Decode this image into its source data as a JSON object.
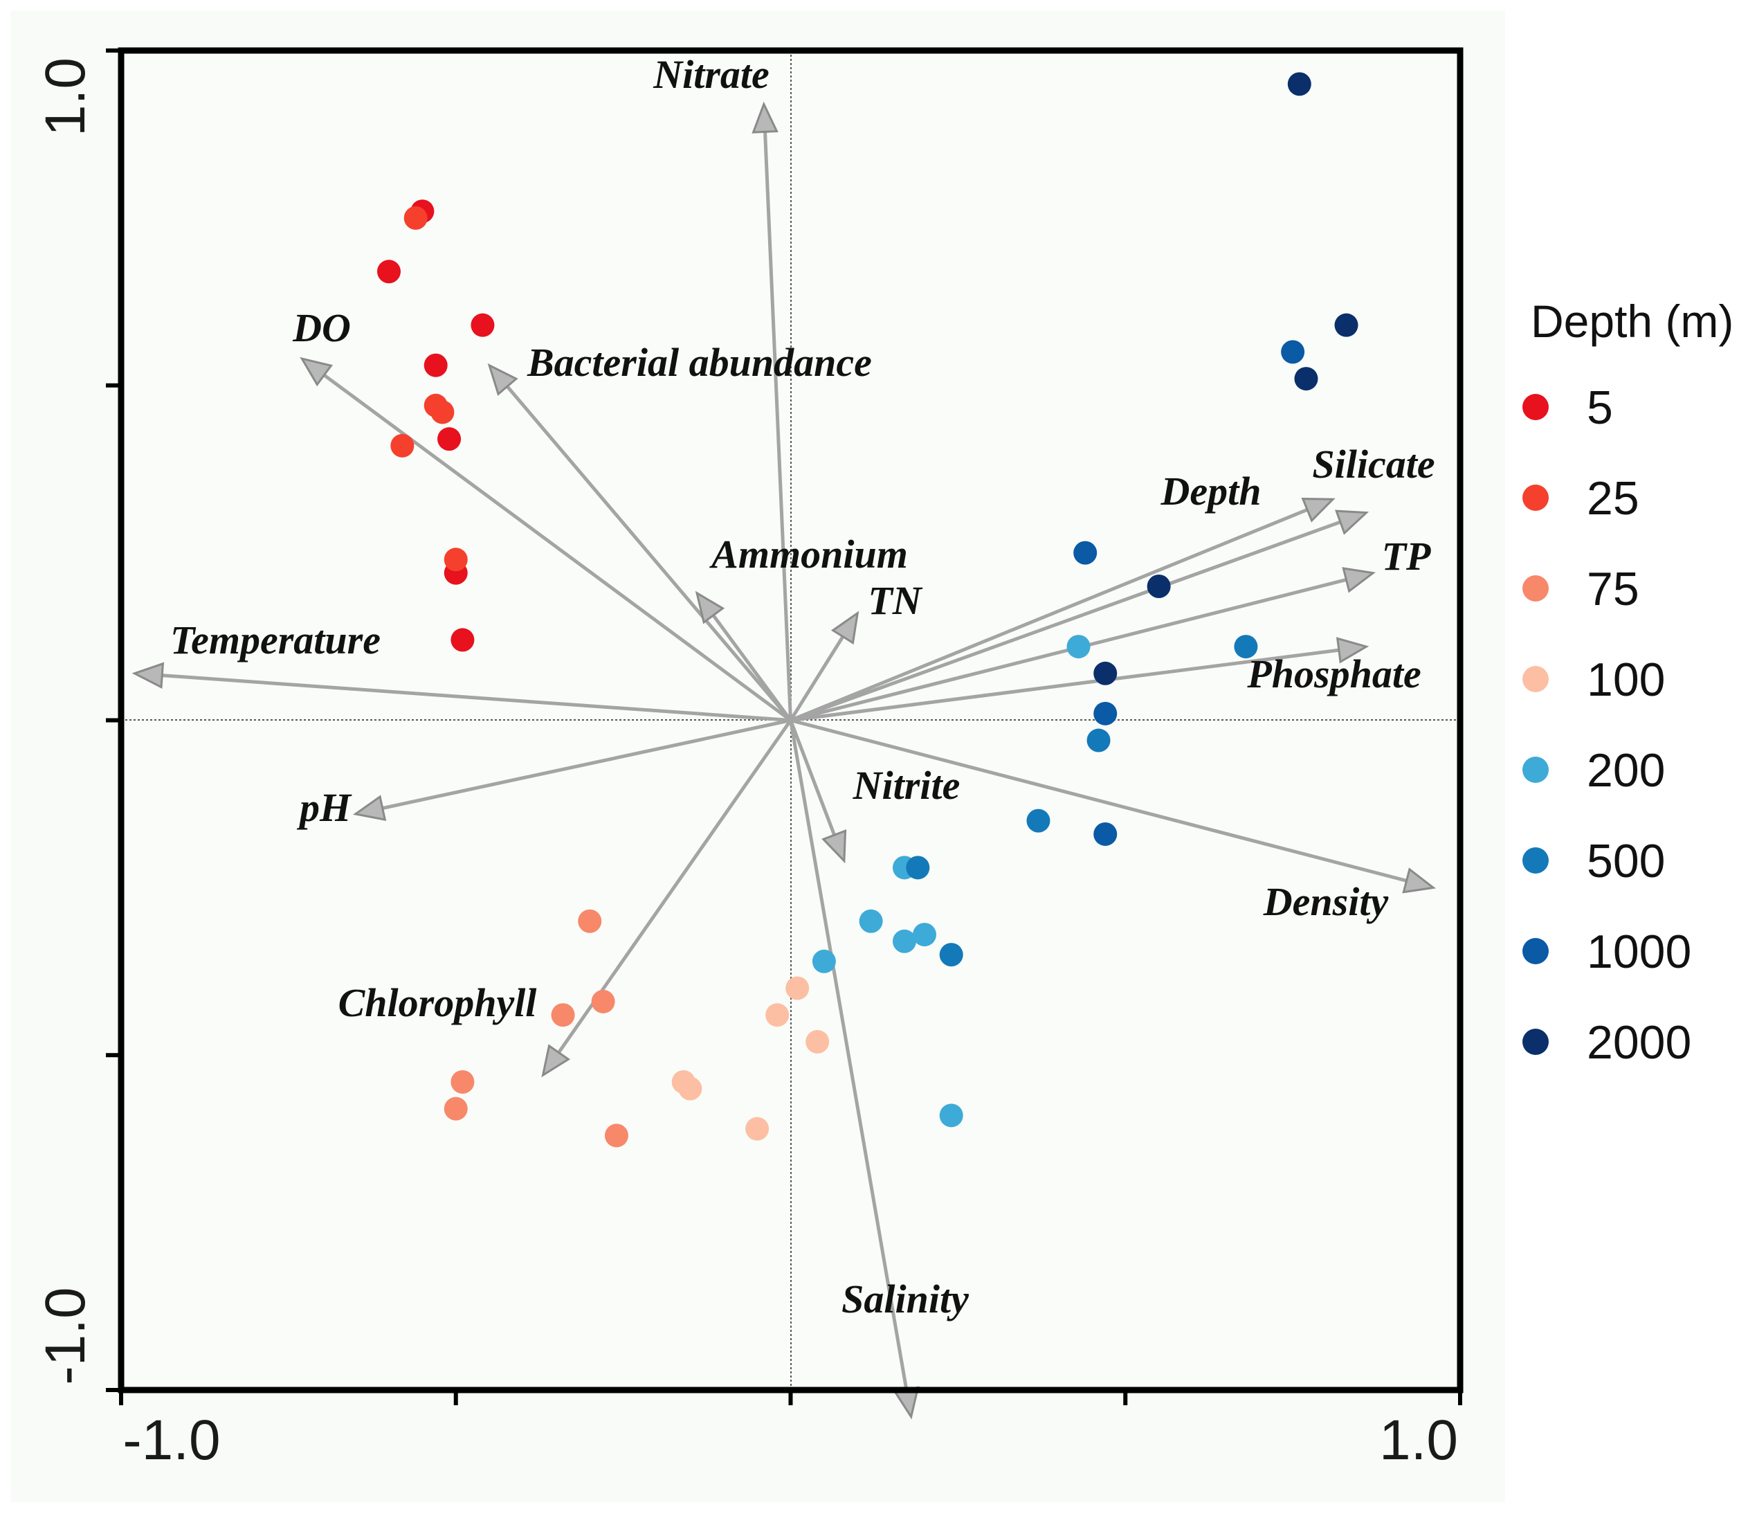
{
  "chart_data": {
    "type": "scatter",
    "subtype": "ordination-biplot",
    "title": "",
    "xlabel": "",
    "ylabel": "",
    "xlim": [
      -1.0,
      1.0
    ],
    "ylim": [
      -1.0,
      1.0
    ],
    "x_tick_labels": [
      "-1.0",
      "1.0"
    ],
    "y_tick_labels": [
      "1.0",
      "-1.0"
    ],
    "grid": false,
    "zero_lines": true,
    "vectors": [
      {
        "name": "Nitrate",
        "x": -0.04,
        "y": 0.92
      },
      {
        "name": "DO",
        "x": -0.73,
        "y": 0.54
      },
      {
        "name": "Bacterial abundance",
        "x": -0.45,
        "y": 0.53
      },
      {
        "name": "Ammonium",
        "x": -0.14,
        "y": 0.19
      },
      {
        "name": "TN",
        "x": 0.1,
        "y": 0.16
      },
      {
        "name": "Temperature",
        "x": -0.98,
        "y": 0.07
      },
      {
        "name": "pH",
        "x": -0.65,
        "y": -0.14
      },
      {
        "name": "Chlorophyll",
        "x": -0.37,
        "y": -0.53
      },
      {
        "name": "Nitrite",
        "x": 0.08,
        "y": -0.21
      },
      {
        "name": "Salinity",
        "x": 0.18,
        "y": -1.04
      },
      {
        "name": "Depth",
        "x": 0.81,
        "y": 0.33
      },
      {
        "name": "Silicate",
        "x": 0.86,
        "y": 0.31
      },
      {
        "name": "TP",
        "x": 0.87,
        "y": 0.22
      },
      {
        "name": "Phosphate",
        "x": 0.86,
        "y": 0.11
      },
      {
        "name": "Density",
        "x": 0.96,
        "y": -0.25
      }
    ],
    "series": [
      {
        "name": "5",
        "color": "#e8111e",
        "points": [
          [
            -0.55,
            0.76
          ],
          [
            -0.6,
            0.67
          ],
          [
            -0.53,
            0.53
          ],
          [
            -0.46,
            0.59
          ],
          [
            -0.51,
            0.42
          ],
          [
            -0.5,
            0.22
          ],
          [
            -0.49,
            0.12
          ]
        ]
      },
      {
        "name": "25",
        "color": "#f4402c",
        "points": [
          [
            -0.56,
            0.75
          ],
          [
            -0.53,
            0.47
          ],
          [
            -0.52,
            0.46
          ],
          [
            -0.58,
            0.41
          ],
          [
            -0.5,
            0.24
          ]
        ]
      },
      {
        "name": "75",
        "color": "#f7886a",
        "points": [
          [
            -0.3,
            -0.3
          ],
          [
            -0.34,
            -0.44
          ],
          [
            -0.28,
            -0.42
          ],
          [
            -0.49,
            -0.54
          ],
          [
            -0.5,
            -0.58
          ],
          [
            -0.26,
            -0.62
          ]
        ]
      },
      {
        "name": "100",
        "color": "#fcbfa3",
        "points": [
          [
            0.01,
            -0.4
          ],
          [
            -0.02,
            -0.44
          ],
          [
            0.04,
            -0.48
          ],
          [
            -0.16,
            -0.54
          ],
          [
            -0.15,
            -0.55
          ],
          [
            -0.05,
            -0.61
          ]
        ]
      },
      {
        "name": "200",
        "color": "#3eaad8",
        "points": [
          [
            0.17,
            -0.22
          ],
          [
            0.12,
            -0.3
          ],
          [
            0.17,
            -0.33
          ],
          [
            0.2,
            -0.32
          ],
          [
            0.05,
            -0.36
          ],
          [
            0.24,
            -0.59
          ],
          [
            0.43,
            0.11
          ]
        ]
      },
      {
        "name": "500",
        "color": "#1479b9",
        "points": [
          [
            0.68,
            0.11
          ],
          [
            0.46,
            -0.03
          ],
          [
            0.37,
            -0.15
          ],
          [
            0.19,
            -0.22
          ],
          [
            0.24,
            -0.35
          ]
        ]
      },
      {
        "name": "1000",
        "color": "#0a5aa6",
        "points": [
          [
            0.75,
            0.55
          ],
          [
            0.44,
            0.25
          ],
          [
            0.47,
            0.01
          ],
          [
            0.47,
            -0.17
          ]
        ]
      },
      {
        "name": "2000",
        "color": "#0b2f6b",
        "points": [
          [
            0.76,
            0.95
          ],
          [
            0.83,
            0.59
          ],
          [
            0.77,
            0.51
          ],
          [
            0.55,
            0.2
          ],
          [
            0.47,
            0.07
          ]
        ]
      }
    ],
    "legend": {
      "title": "Depth (m)",
      "position": "right",
      "entries": [
        "5",
        "25",
        "75",
        "100",
        "200",
        "500",
        "1000",
        "2000"
      ]
    }
  }
}
